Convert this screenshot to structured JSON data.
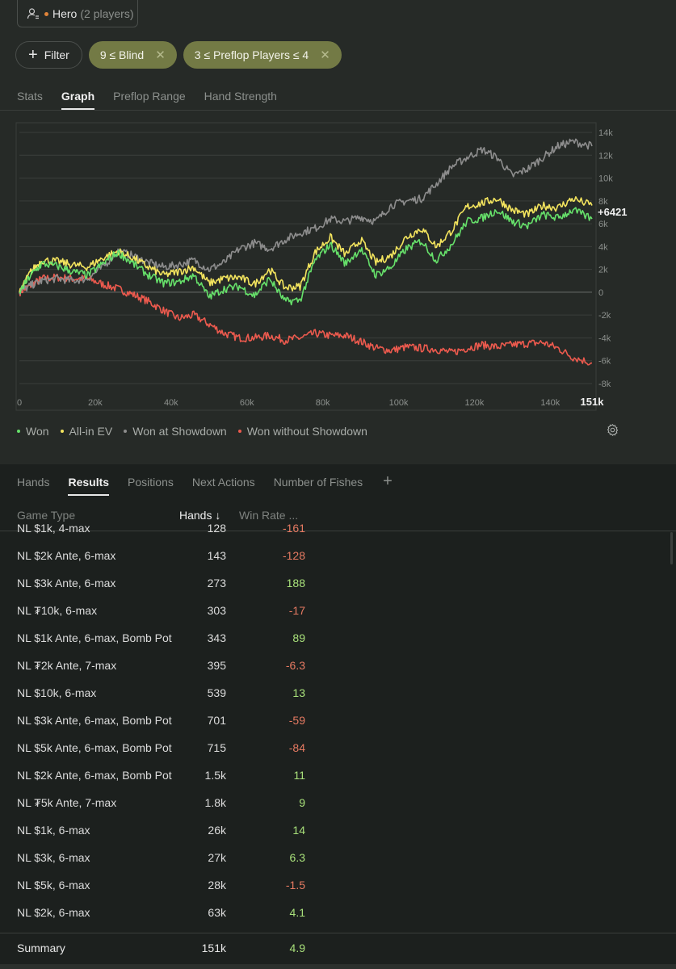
{
  "hero": {
    "name": "Hero",
    "players": "(2 players)"
  },
  "filters": {
    "filter_label": "Filter",
    "chips": [
      "9 ≤ Blind",
      "3 ≤ Preflop Players ≤ 4"
    ]
  },
  "top_tabs": [
    "Stats",
    "Graph",
    "Preflop Range",
    "Hand Strength"
  ],
  "active_top_tab": "Graph",
  "chart_data": {
    "type": "line",
    "x_ticks": [
      "0",
      "20k",
      "40k",
      "60k",
      "80k",
      "100k",
      "120k",
      "140k"
    ],
    "x_end_label": "151k",
    "xlim": [
      0,
      151000
    ],
    "y_ticks": [
      "14k",
      "12k",
      "10k",
      "8k",
      "6k",
      "4k",
      "2k",
      "0",
      "-2k",
      "-4k",
      "-6k",
      "-8k"
    ],
    "ylim": [
      -8000,
      14000
    ],
    "end_value_label": "+6421",
    "series": [
      {
        "name": "Won",
        "color": "#66e06a",
        "x": [
          0,
          3000,
          6000,
          10000,
          14000,
          18000,
          22000,
          26000,
          30000,
          34000,
          38000,
          42000,
          46000,
          50000,
          54000,
          58000,
          62000,
          66000,
          70000,
          74000,
          78000,
          82000,
          86000,
          90000,
          94000,
          98000,
          102000,
          106000,
          110000,
          114000,
          118000,
          122000,
          126000,
          130000,
          134000,
          138000,
          142000,
          146000,
          151000
        ],
        "y": [
          0,
          1500,
          2500,
          2300,
          1800,
          1500,
          2500,
          3500,
          2500,
          1500,
          800,
          900,
          1500,
          -400,
          300,
          500,
          -300,
          1200,
          -800,
          -700,
          2800,
          4200,
          2500,
          3800,
          1500,
          2200,
          3800,
          4500,
          2800,
          4200,
          6200,
          6500,
          7200,
          6200,
          5800,
          6800,
          6500,
          7200,
          6421
        ]
      },
      {
        "name": "All-in EV",
        "color": "#f3e45e",
        "x": [
          0,
          3000,
          6000,
          10000,
          14000,
          18000,
          22000,
          26000,
          30000,
          34000,
          38000,
          42000,
          46000,
          50000,
          54000,
          58000,
          62000,
          66000,
          70000,
          74000,
          78000,
          82000,
          86000,
          90000,
          94000,
          98000,
          102000,
          106000,
          110000,
          114000,
          118000,
          122000,
          126000,
          130000,
          134000,
          138000,
          142000,
          146000,
          151000
        ],
        "y": [
          0,
          1800,
          2800,
          2700,
          2400,
          2200,
          3000,
          3600,
          3000,
          2200,
          1500,
          1800,
          2200,
          800,
          1200,
          1300,
          700,
          2000,
          400,
          500,
          3500,
          4800,
          3300,
          4600,
          2600,
          3200,
          4800,
          5600,
          4000,
          5400,
          7500,
          7800,
          8200,
          7200,
          6800,
          7600,
          7400,
          8200,
          7600
        ]
      },
      {
        "name": "Won at Showdown",
        "color": "#8d8d8d",
        "x": [
          0,
          3000,
          6000,
          10000,
          14000,
          18000,
          22000,
          26000,
          30000,
          34000,
          38000,
          42000,
          46000,
          50000,
          54000,
          58000,
          62000,
          66000,
          70000,
          74000,
          78000,
          82000,
          86000,
          90000,
          94000,
          98000,
          102000,
          106000,
          110000,
          114000,
          118000,
          122000,
          126000,
          130000,
          134000,
          138000,
          142000,
          146000,
          151000
        ],
        "y": [
          0,
          600,
          1000,
          1200,
          1000,
          1200,
          2200,
          3600,
          3200,
          2600,
          2200,
          2400,
          2800,
          2000,
          2600,
          3800,
          4300,
          3800,
          4600,
          5200,
          5600,
          6400,
          6200,
          6600,
          6200,
          7600,
          8000,
          8200,
          9500,
          11000,
          11800,
          12500,
          11800,
          10200,
          10800,
          11800,
          12800,
          13200,
          12800
        ]
      },
      {
        "name": "Won without Showdown",
        "color": "#ec5a4e",
        "x": [
          0,
          3000,
          6000,
          10000,
          14000,
          18000,
          22000,
          26000,
          30000,
          34000,
          38000,
          42000,
          46000,
          50000,
          54000,
          58000,
          62000,
          66000,
          70000,
          74000,
          78000,
          82000,
          86000,
          90000,
          94000,
          98000,
          102000,
          106000,
          110000,
          114000,
          118000,
          122000,
          126000,
          130000,
          134000,
          138000,
          142000,
          146000,
          151000
        ],
        "y": [
          0,
          600,
          1200,
          1300,
          1200,
          1200,
          700,
          300,
          -200,
          -800,
          -1600,
          -2300,
          -2000,
          -2800,
          -3600,
          -4000,
          -4000,
          -3800,
          -4200,
          -4000,
          -3600,
          -3800,
          -3800,
          -4300,
          -4900,
          -5100,
          -4800,
          -4900,
          -5000,
          -5300,
          -4900,
          -4600,
          -4800,
          -4600,
          -4500,
          -4400,
          -4900,
          -5700,
          -6200
        ]
      }
    ]
  },
  "legend": [
    "Won",
    "All-in EV",
    "Won at Showdown",
    "Won without Showdown"
  ],
  "bottom_tabs": [
    "Hands",
    "Results",
    "Positions",
    "Next Actions",
    "Number of Fishes"
  ],
  "active_bottom_tab": "Results",
  "table": {
    "headers": {
      "game_type": "Game Type",
      "hands": "Hands ↓",
      "win_rate": "Win Rate ..."
    },
    "rows": [
      {
        "game_type": "NL $1k, 4-max",
        "hands": "128",
        "win_rate": "-161",
        "sign": "neg"
      },
      {
        "game_type": "NL $2k Ante, 6-max",
        "hands": "143",
        "win_rate": "-128",
        "sign": "neg"
      },
      {
        "game_type": "NL $3k Ante, 6-max",
        "hands": "273",
        "win_rate": "188",
        "sign": "pos"
      },
      {
        "game_type": "NL ₮10k, 6-max",
        "hands": "303",
        "win_rate": "-17",
        "sign": "neg"
      },
      {
        "game_type": "NL $1k Ante, 6-max, Bomb Pot",
        "hands": "343",
        "win_rate": "89",
        "sign": "pos"
      },
      {
        "game_type": "NL ₮2k Ante, 7-max",
        "hands": "395",
        "win_rate": "-6.3",
        "sign": "neg"
      },
      {
        "game_type": "NL $10k, 6-max",
        "hands": "539",
        "win_rate": "13",
        "sign": "pos"
      },
      {
        "game_type": "NL $3k Ante, 6-max, Bomb Pot",
        "hands": "701",
        "win_rate": "-59",
        "sign": "neg"
      },
      {
        "game_type": "NL $5k Ante, 6-max, Bomb Pot",
        "hands": "715",
        "win_rate": "-84",
        "sign": "neg"
      },
      {
        "game_type": "NL $2k Ante, 6-max, Bomb Pot",
        "hands": "1.5k",
        "win_rate": "11",
        "sign": "pos"
      },
      {
        "game_type": "NL ₮5k Ante, 7-max",
        "hands": "1.8k",
        "win_rate": "9",
        "sign": "pos"
      },
      {
        "game_type": "NL $1k, 6-max",
        "hands": "26k",
        "win_rate": "14",
        "sign": "pos"
      },
      {
        "game_type": "NL $3k, 6-max",
        "hands": "27k",
        "win_rate": "6.3",
        "sign": "pos"
      },
      {
        "game_type": "NL $5k, 6-max",
        "hands": "28k",
        "win_rate": "-1.5",
        "sign": "neg"
      },
      {
        "game_type": "NL $2k, 6-max",
        "hands": "63k",
        "win_rate": "4.1",
        "sign": "pos"
      }
    ],
    "summary": {
      "game_type": "Summary",
      "hands": "151k",
      "win_rate": "4.9"
    }
  }
}
